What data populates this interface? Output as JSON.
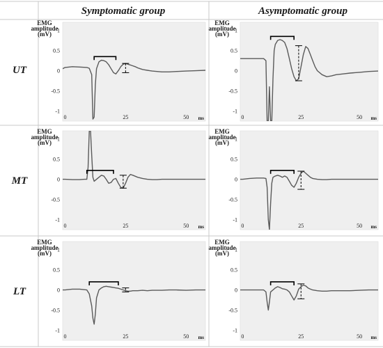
{
  "figure": {
    "columns": [
      "Symptomatic group",
      "Asymptomatic group"
    ],
    "rows": [
      "UT",
      "MT",
      "LT"
    ]
  },
  "chart_data": [
    {
      "type": "line",
      "panel": "UT-symptomatic",
      "row": "UT",
      "group": "Symptomatic group",
      "ylabel_lines": [
        "EMG",
        "amplitude",
        "(mV)"
      ],
      "x_unit": "ms",
      "xlim": [
        -1,
        58
      ],
      "ylim": [
        -1.25,
        1.2
      ],
      "xticks": [
        0,
        25,
        50
      ],
      "yticks": [
        1,
        0.5,
        0,
        -0.5,
        -1
      ],
      "series": [
        {
          "x": [
            -1,
            0,
            3,
            6,
            9,
            10,
            11,
            11.5,
            12,
            12.5,
            13,
            14,
            15,
            16,
            17,
            18,
            19,
            20,
            21,
            22,
            23,
            24,
            25,
            26,
            27,
            28,
            29,
            30,
            31,
            32,
            33,
            34,
            35,
            36,
            38,
            40,
            43,
            46,
            50,
            54,
            58
          ],
          "y": [
            0.05,
            0.08,
            0.1,
            0.09,
            0.08,
            0.06,
            -0.1,
            -1.2,
            -1.15,
            -0.35,
            0.05,
            0.22,
            0.26,
            0.25,
            0.22,
            0.15,
            0.05,
            -0.05,
            -0.08,
            0.0,
            0.1,
            0.16,
            0.18,
            0.16,
            0.14,
            0.12,
            0.1,
            0.07,
            0.05,
            0.03,
            0.02,
            0.01,
            0.0,
            -0.01,
            -0.02,
            -0.03,
            -0.03,
            -0.02,
            -0.01,
            0.0,
            0.01
          ]
        }
      ],
      "bracket": {
        "x_start": 12,
        "x_end": 21,
        "y": 0.35
      },
      "range_marker": {
        "x": 25,
        "y_top": 0.18,
        "y_bottom": -0.05
      }
    },
    {
      "type": "line",
      "panel": "UT-asymptomatic",
      "row": "UT",
      "group": "Asymptomatic group",
      "ylabel_lines": [
        "EMG",
        "amplitude",
        "(mV)"
      ],
      "x_unit": "ms",
      "xlim": [
        -1,
        58
      ],
      "ylim": [
        -1.25,
        1.2
      ],
      "xticks": [
        0,
        25,
        50
      ],
      "yticks": [
        1,
        0.5,
        0,
        -0.5,
        -1
      ],
      "series": [
        {
          "x": [
            -1,
            0,
            3,
            6,
            9,
            10,
            10.5,
            11,
            11.5,
            12,
            12.5,
            13,
            13.5,
            14,
            15,
            16,
            17,
            18,
            19,
            20,
            21,
            22,
            23,
            24,
            25,
            26,
            27,
            28,
            29,
            30,
            31,
            32,
            34,
            36,
            38,
            40,
            43,
            46,
            50,
            54,
            58
          ],
          "y": [
            0.3,
            0.3,
            0.3,
            0.3,
            0.3,
            0.25,
            -1.25,
            -1.25,
            -0.4,
            -1.25,
            -1.25,
            -0.2,
            0.5,
            0.65,
            0.75,
            0.77,
            0.75,
            0.7,
            0.55,
            0.3,
            0.05,
            -0.15,
            -0.25,
            -0.2,
            0.1,
            0.4,
            0.6,
            0.55,
            0.4,
            0.25,
            0.1,
            0.0,
            -0.1,
            -0.15,
            -0.13,
            -0.1,
            -0.08,
            -0.06,
            -0.04,
            -0.02,
            -0.01
          ]
        }
      ],
      "bracket": {
        "x_start": 12,
        "x_end": 22,
        "y": 0.85
      },
      "range_marker": {
        "x": 24,
        "y_top": 0.62,
        "y_bottom": -0.25
      }
    },
    {
      "type": "line",
      "panel": "MT-symptomatic",
      "row": "MT",
      "group": "Symptomatic group",
      "ylabel_lines": [
        "EMG",
        "amplitude",
        "(mV)"
      ],
      "x_unit": "ms",
      "xlim": [
        -1,
        58
      ],
      "ylim": [
        -1.25,
        1.2
      ],
      "xticks": [
        0,
        25,
        50
      ],
      "yticks": [
        1,
        0.5,
        0,
        -0.5,
        -1
      ],
      "series": [
        {
          "x": [
            -1,
            0,
            3,
            6,
            8,
            9,
            9.5,
            10,
            10.5,
            11,
            11.5,
            12,
            13,
            14,
            15,
            16,
            17,
            18,
            19,
            20,
            21,
            22,
            23,
            24,
            25,
            26,
            27,
            28,
            30,
            32,
            34,
            36,
            38,
            40,
            43,
            46,
            50,
            54,
            58
          ],
          "y": [
            0.0,
            0.0,
            -0.01,
            -0.01,
            0.0,
            0.0,
            0.3,
            1.2,
            1.2,
            0.6,
            0.05,
            -0.05,
            0.0,
            0.05,
            0.1,
            0.08,
            0.0,
            -0.1,
            -0.08,
            0.0,
            0.02,
            -0.1,
            -0.2,
            -0.22,
            -0.1,
            0.05,
            0.12,
            0.1,
            0.05,
            0.02,
            0.0,
            -0.01,
            -0.01,
            0.0,
            0.0,
            0.0,
            0.0,
            0.0,
            0.0
          ]
        }
      ],
      "bracket": {
        "x_start": 9,
        "x_end": 20,
        "y": 0.22
      },
      "range_marker": {
        "x": 24,
        "y_top": 0.1,
        "y_bottom": -0.22
      }
    },
    {
      "type": "line",
      "panel": "MT-asymptomatic",
      "row": "MT",
      "group": "Asymptomatic group",
      "ylabel_lines": [
        "EMG",
        "amplitude",
        "(mV)"
      ],
      "x_unit": "ms",
      "xlim": [
        -1,
        58
      ],
      "ylim": [
        -1.25,
        1.2
      ],
      "xticks": [
        0,
        25,
        50
      ],
      "yticks": [
        1,
        0.5,
        0,
        -0.5,
        -1
      ],
      "series": [
        {
          "x": [
            -1,
            0,
            3,
            6,
            9,
            10,
            10.5,
            11,
            11.5,
            12,
            12.5,
            13,
            14,
            15,
            16,
            17,
            18,
            19,
            20,
            21,
            22,
            23,
            24,
            25,
            26,
            27,
            28,
            29,
            30,
            32,
            34,
            36,
            38,
            40,
            43,
            46,
            50,
            54,
            58
          ],
          "y": [
            0.0,
            0.0,
            0.02,
            0.03,
            0.03,
            0.02,
            -0.2,
            -1.0,
            -1.25,
            -0.6,
            -0.1,
            0.05,
            0.08,
            0.1,
            0.08,
            0.05,
            0.08,
            0.05,
            -0.05,
            -0.15,
            -0.2,
            -0.1,
            0.05,
            0.15,
            0.2,
            0.15,
            0.1,
            0.05,
            0.02,
            0.0,
            -0.01,
            -0.01,
            0.0,
            0.0,
            0.0,
            0.0,
            0.0,
            0.0,
            0.0
          ]
        }
      ],
      "bracket": {
        "x_start": 12,
        "x_end": 22,
        "y": 0.22
      },
      "range_marker": {
        "x": 25,
        "y_top": 0.2,
        "y_bottom": -0.25
      }
    },
    {
      "type": "line",
      "panel": "LT-symptomatic",
      "row": "LT",
      "group": "Symptomatic group",
      "ylabel_lines": [
        "EMG",
        "amplitude",
        "(mV)"
      ],
      "x_unit": "ms",
      "xlim": [
        -1,
        58
      ],
      "ylim": [
        -1.25,
        1.2
      ],
      "xticks": [
        0,
        25,
        50
      ],
      "yticks": [
        1,
        0.5,
        0,
        -0.5,
        -1
      ],
      "series": [
        {
          "x": [
            -1,
            0,
            3,
            6,
            9,
            10,
            11,
            11.5,
            12,
            12.5,
            13,
            14,
            15,
            16,
            17,
            18,
            19,
            20,
            21,
            22,
            23,
            24,
            25,
            26,
            27,
            28,
            30,
            32,
            34,
            36,
            38,
            40,
            43,
            46,
            50,
            54,
            58
          ],
          "y": [
            0.0,
            0.0,
            0.02,
            0.02,
            0.0,
            -0.1,
            -0.4,
            -0.7,
            -0.85,
            -0.6,
            -0.2,
            0.0,
            0.05,
            0.08,
            0.09,
            0.08,
            0.07,
            0.06,
            0.05,
            0.04,
            0.02,
            0.0,
            -0.02,
            -0.03,
            -0.03,
            -0.02,
            -0.02,
            -0.01,
            -0.02,
            -0.01,
            -0.01,
            -0.01,
            0.0,
            0.0,
            -0.01,
            0.0,
            0.0
          ]
        }
      ],
      "bracket": {
        "x_start": 10,
        "x_end": 22,
        "y": 0.2
      },
      "range_marker": {
        "x": 25,
        "y_top": 0.05,
        "y_bottom": -0.05
      }
    },
    {
      "type": "line",
      "panel": "LT-asymptomatic",
      "row": "LT",
      "group": "Asymptomatic group",
      "ylabel_lines": [
        "EMG",
        "amplitude",
        "(mV)"
      ],
      "x_unit": "ms",
      "xlim": [
        -1,
        58
      ],
      "ylim": [
        -1.25,
        1.2
      ],
      "xticks": [
        0,
        25,
        50
      ],
      "yticks": [
        1,
        0.5,
        0,
        -0.5,
        -1
      ],
      "series": [
        {
          "x": [
            -1,
            0,
            3,
            6,
            8,
            9,
            10,
            10.5,
            11,
            11.5,
            12,
            13,
            14,
            15,
            16,
            17,
            18,
            19,
            20,
            21,
            22,
            23,
            24,
            25,
            26,
            27,
            28,
            29,
            30,
            32,
            34,
            36,
            38,
            40,
            43,
            46,
            50,
            54,
            58
          ],
          "y": [
            0.0,
            0.0,
            0.0,
            0.0,
            0.0,
            0.0,
            -0.05,
            -0.3,
            -0.5,
            -0.3,
            -0.05,
            0.0,
            0.05,
            0.08,
            0.06,
            0.03,
            0.02,
            0.0,
            -0.05,
            -0.15,
            -0.25,
            -0.15,
            0.02,
            0.08,
            0.12,
            0.1,
            0.05,
            0.02,
            0.0,
            -0.02,
            -0.03,
            -0.03,
            -0.02,
            -0.02,
            -0.02,
            -0.02,
            -0.01,
            0.0,
            0.0
          ]
        }
      ],
      "bracket": {
        "x_start": 12,
        "x_end": 22,
        "y": 0.2
      },
      "range_marker": {
        "x": 25,
        "y_top": 0.15,
        "y_bottom": -0.22
      }
    }
  ]
}
